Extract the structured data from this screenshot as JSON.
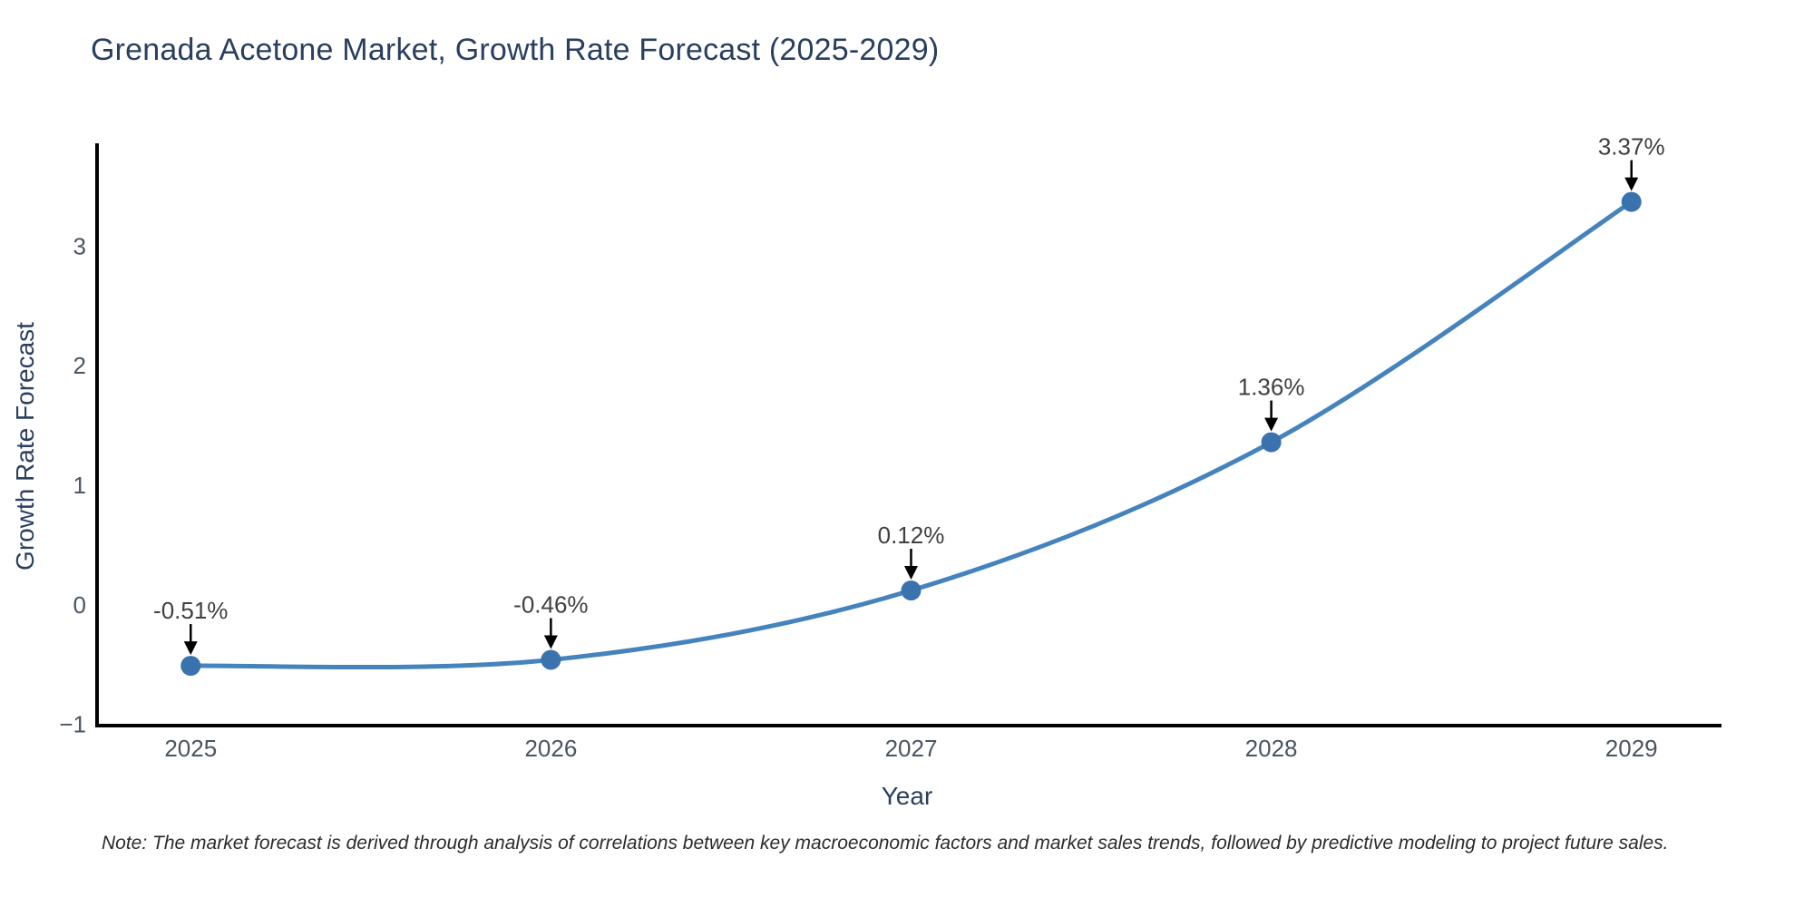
{
  "title": "Grenada Acetone Market, Growth Rate Forecast (2025-2029)",
  "note": "Note: The market forecast is derived through analysis of correlations between key macroeconomic factors and market sales trends, followed by predictive modeling to project future sales.",
  "chart_data": {
    "type": "line",
    "title": "Grenada Acetone Market, Growth Rate Forecast (2025-2029)",
    "xlabel": "Year",
    "ylabel": "Growth Rate Forecast",
    "x": [
      2025,
      2026,
      2027,
      2028,
      2029
    ],
    "values": [
      -0.51,
      -0.46,
      0.12,
      1.36,
      3.37
    ],
    "point_labels": [
      "-0.51%",
      "-0.46%",
      "0.12%",
      "1.36%",
      "3.37%"
    ],
    "x_tick_labels": [
      "2025",
      "2026",
      "2027",
      "2028",
      "2029"
    ],
    "y_ticks": [
      -1,
      0,
      1,
      2,
      3
    ],
    "y_tick_labels": [
      "−1",
      "0",
      "1",
      "2",
      "3"
    ],
    "xlim": [
      2024.74,
      2029.25
    ],
    "ylim": [
      -1.01,
      3.86
    ],
    "line_shape": "spline",
    "grid": false,
    "legend": "none",
    "colors": {
      "line": "#4583bd",
      "marker": "#3a72ad",
      "annotation_arrow": "#000000",
      "axis_line": "#000000",
      "heading_text": "#2a3f5f",
      "tick_text": "#4a5463",
      "annotation_text": "#404040"
    }
  }
}
